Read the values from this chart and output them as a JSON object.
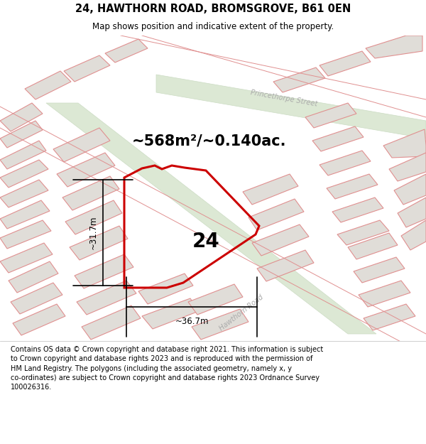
{
  "title": "24, HAWTHORN ROAD, BROMSGROVE, B61 0EN",
  "subtitle": "Map shows position and indicative extent of the property.",
  "area_text": "~568m²/~0.140ac.",
  "number_label": "24",
  "dim_horizontal": "~36.7m",
  "dim_vertical": "~31.7m",
  "footer": "Contains OS data © Crown copyright and database right 2021. This information is subject to Crown copyright and database rights 2023 and is reproduced with the permission of HM Land Registry. The polygons (including the associated geometry, namely x, y co-ordinates) are subject to Crown copyright and database rights 2023 Ordnance Survey 100026316.",
  "bg_color": "#f2f0ed",
  "green_road": "#dce8d4",
  "green_road_edge": "#ccdcc4",
  "pink_plot": "#f5d8d8",
  "pink_edge": "#e09090",
  "gray_plot": "#e0ddd8",
  "gray_edge": "#c8c4bc",
  "plot_outline_color": "#cc0000",
  "plot_fill": "none",
  "header_bg": "#ffffff",
  "footer_bg": "#ffffff",
  "street_label_color": "#aaaaaa",
  "area_text_color": "#111111",
  "dim_color": "#111111"
}
